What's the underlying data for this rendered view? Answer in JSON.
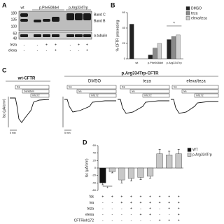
{
  "blot": {
    "label": "A",
    "headers": [
      "wt",
      "p.Phe508del",
      "p.Arg334Trp"
    ],
    "markers": [
      "180",
      "135",
      "100",
      "63",
      "48"
    ],
    "bands": [
      "Band C",
      "Band B",
      "α-tubulin"
    ],
    "conditions": [
      {
        "label": "teza",
        "signs": [
          "-",
          "-",
          "+",
          "+",
          "-",
          "+",
          "+"
        ]
      },
      {
        "label": "elexa",
        "signs": [
          "-",
          "-",
          "-",
          "+",
          "-",
          "-",
          "+"
        ]
      }
    ]
  },
  "traces": {
    "label": "C",
    "wt_title": "wt-CFTR",
    "mut_title": "p.Arg334Trp-CFTR",
    "panels": [
      "DMSO",
      "teza",
      "elexa/teza"
    ],
    "wt_boxes": [
      "fsk",
      "Genistein",
      "inh172"
    ],
    "mut_boxes": [
      "fsk",
      "iva",
      "inh172"
    ],
    "ylabel": "Isc (µA/cm²)",
    "scale": "5 min"
  },
  "panel_d_label": "D",
  "panel_b_label": "B",
  "conditions_d": [
    {
      "label": "fsk",
      "signs": [
        "+",
        "+",
        "+",
        "+",
        "+",
        "+",
        "+",
        "+",
        "+"
      ]
    },
    {
      "label": "iva",
      "signs": [
        "-",
        "-",
        "+",
        "+",
        "+",
        "+",
        "+",
        "+",
        "+"
      ]
    },
    {
      "label": "teza",
      "signs": [
        "-",
        "-",
        "-",
        "+",
        "-",
        "+",
        "-",
        "+",
        "+"
      ]
    },
    {
      "label": "elexa",
      "signs": [
        "-",
        "-",
        "-",
        "-",
        "+",
        "+",
        "-",
        "-",
        "+"
      ]
    },
    {
      "label": "CFTRinh172",
      "signs": [
        "-",
        "-",
        "-",
        "-",
        "-",
        "-",
        "+",
        "+",
        "+"
      ]
    }
  ],
  "chart_data": [
    {
      "type": "bar",
      "ylabel": "% CFTR processing",
      "categories": [
        "wt",
        "p.Phe508del",
        "p.Arg334Trp"
      ],
      "series": [
        {
          "name": "DMSO",
          "color": "#222222",
          "values": [
            45,
            5,
            25
          ]
        },
        {
          "name": "teza",
          "color": "#8a8a8a",
          "values": [
            null,
            14,
            29
          ]
        },
        {
          "name": "elexa/teza",
          "color": "#cfcfcf",
          "values": [
            null,
            20,
            31
          ]
        }
      ],
      "ylim": [
        0,
        60
      ],
      "yticks": [
        0,
        20,
        40,
        60
      ],
      "annotation": "*"
    },
    {
      "type": "bar",
      "ylabel": "Isc (µA/cm²)",
      "series": [
        {
          "name": "WT",
          "color": "#111111",
          "values": [
            -40,
            null,
            null,
            null,
            null,
            null,
            null,
            null,
            null
          ],
          "errors": [
            5,
            null,
            null,
            null,
            null,
            null,
            null,
            null,
            null
          ]
        },
        {
          "name": "p.Arg334Trp",
          "color": "#c8c8c8",
          "values": [
            null,
            -10,
            -32,
            -28,
            -25,
            -22,
            38,
            35,
            38
          ],
          "errors": [
            null,
            3,
            8,
            7,
            6,
            5,
            12,
            10,
            12
          ]
        }
      ],
      "ylim": [
        -60,
        60
      ],
      "yticks": [
        -60,
        -40,
        -20,
        0,
        20,
        40,
        60
      ],
      "annotation": "*"
    }
  ]
}
